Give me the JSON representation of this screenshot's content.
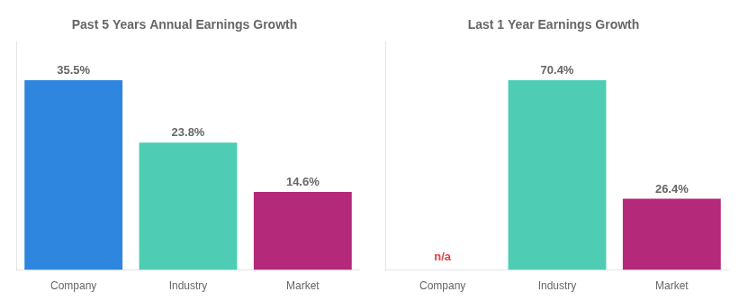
{
  "chart_data": [
    {
      "type": "bar",
      "title": "Past 5 Years Annual Earnings Growth",
      "categories": [
        "Company",
        "Industry",
        "Market"
      ],
      "values": [
        35.5,
        23.8,
        14.6
      ],
      "value_labels": [
        "35.5%",
        "23.8%",
        "14.6%"
      ],
      "colors": [
        "#2e86de",
        "#4ecdb4",
        "#b5297a"
      ],
      "ylim": [
        0,
        42.6
      ],
      "grid": false,
      "data_labels": true,
      "tick_labels": "x"
    },
    {
      "type": "bar",
      "title": "Last 1 Year Earnings Growth",
      "categories": [
        "Company",
        "Industry",
        "Market"
      ],
      "values": [
        null,
        70.4,
        26.4
      ],
      "value_labels": [
        "n/a",
        "70.4%",
        "26.4%"
      ],
      "colors": [
        "#e84040",
        "#4ecdb4",
        "#b5297a"
      ],
      "ylim": [
        0,
        84.48
      ],
      "grid": false,
      "data_labels": true,
      "tick_labels": "x"
    }
  ]
}
